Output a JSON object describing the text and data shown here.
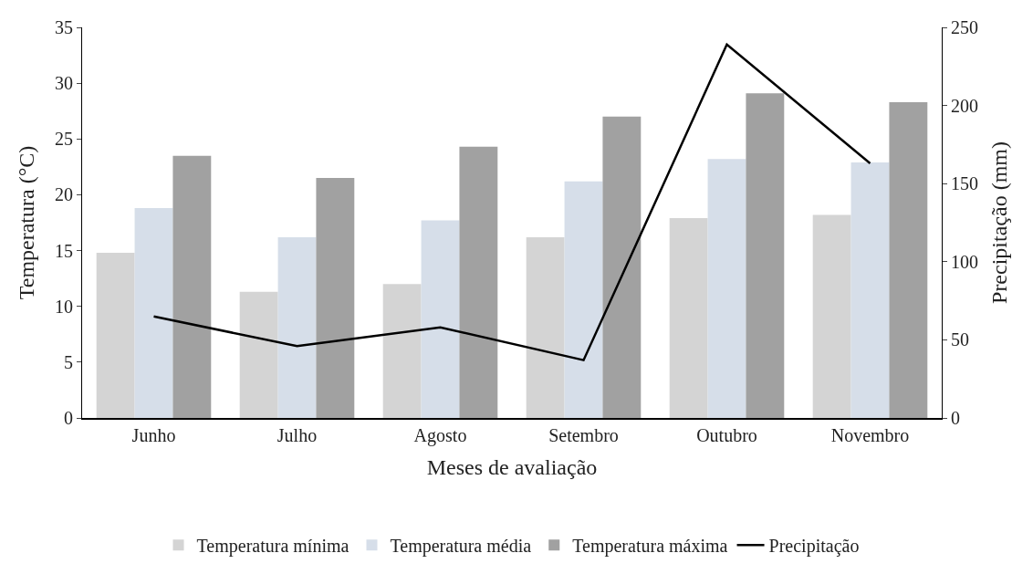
{
  "chart_data": {
    "type": "bar",
    "xlabel": "Meses de avaliação",
    "ylabel": "Temperatura (°C)",
    "y2label": "Precipitação (mm)",
    "categories": [
      "Junho",
      "Julho",
      "Agosto",
      "Setembro",
      "Outubro",
      "Novembro"
    ],
    "series": [
      {
        "name": "Temperatura mínima",
        "color": "#d4d4d4",
        "values": [
          14.8,
          11.3,
          12.0,
          16.2,
          17.9,
          18.2
        ]
      },
      {
        "name": "Temperatura média",
        "color": "#d6dee9",
        "values": [
          18.8,
          16.2,
          17.7,
          21.2,
          23.2,
          22.9
        ]
      },
      {
        "name": "Temperatura máxima",
        "color": "#a1a1a1",
        "values": [
          23.5,
          21.5,
          24.3,
          27.0,
          29.1,
          28.3
        ]
      },
      {
        "name": "Precipitação",
        "type": "line",
        "axis": "y2",
        "color": "#000000",
        "values": [
          65,
          46,
          58,
          37,
          239,
          163
        ]
      }
    ],
    "ylim": [
      0,
      35
    ],
    "yticks": [
      0,
      5,
      10,
      15,
      20,
      25,
      30,
      35
    ],
    "y2lim": [
      0,
      250
    ],
    "y2ticks": [
      0,
      50,
      100,
      150,
      200,
      250
    ],
    "legend": "bottom",
    "marker": "none"
  }
}
